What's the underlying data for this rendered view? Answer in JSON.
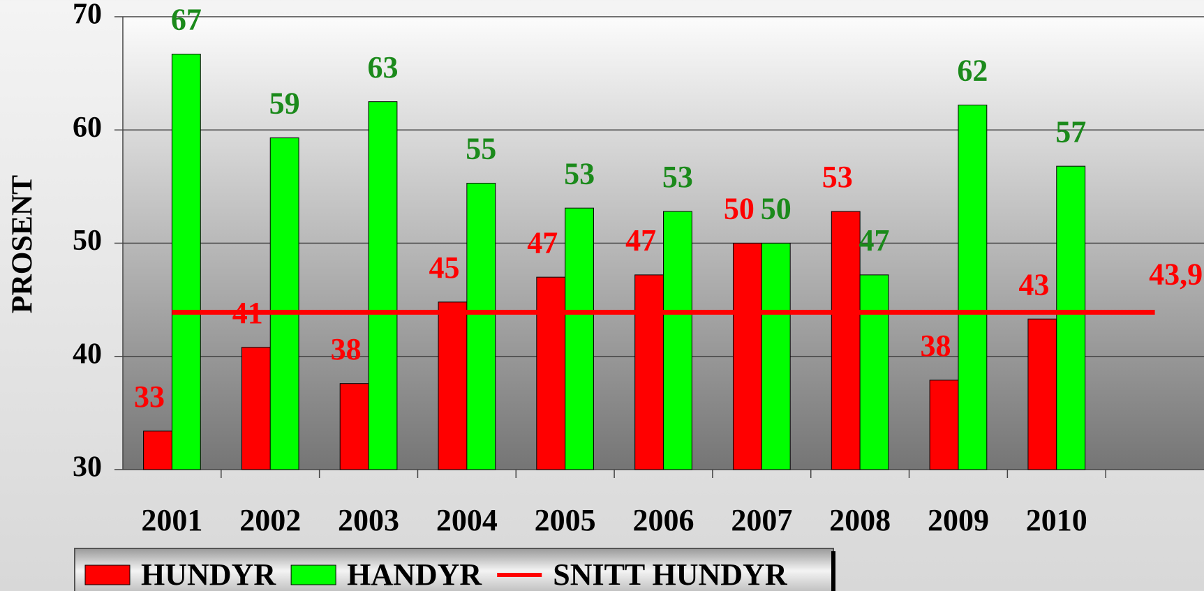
{
  "chart_data": {
    "type": "bar",
    "categories": [
      "2001",
      "2002",
      "2003",
      "2004",
      "2005",
      "2006",
      "2007",
      "2008",
      "2009",
      "2010",
      null
    ],
    "y_label": "PROSENT",
    "ylim": [
      30,
      70
    ],
    "yticks": [
      30,
      40,
      50,
      60,
      70
    ],
    "grid": true,
    "series": [
      {
        "name": "HUNDYR",
        "color": "#ff0000",
        "label_color": "#ff0000",
        "values": [
          33.4,
          40.8,
          37.6,
          44.8,
          47.0,
          47.2,
          50.0,
          52.8,
          37.9,
          43.3,
          null
        ],
        "value_labels": [
          "33",
          "41",
          "38",
          "45",
          "47",
          "47",
          "50",
          "53",
          "38",
          "43",
          null
        ]
      },
      {
        "name": "HANDYR",
        "color": "#00ff00",
        "label_color": "#1b8a1b",
        "values": [
          66.7,
          59.3,
          62.5,
          55.3,
          53.1,
          52.8,
          50.0,
          47.2,
          62.2,
          56.8,
          null
        ],
        "value_labels": [
          "67",
          "59",
          "63",
          "55",
          "53",
          "53",
          "50",
          "47",
          "62",
          "57",
          null
        ]
      },
      {
        "name": "SNITT HUNDYR",
        "type": "line",
        "color": "#ff0000",
        "label_color": "#ff0000",
        "values": [
          43.9,
          43.9,
          43.9,
          43.9,
          43.9,
          43.9,
          43.9,
          43.9,
          43.9,
          43.9,
          43.9
        ],
        "value_labels": [
          null,
          null,
          null,
          null,
          null,
          null,
          null,
          null,
          null,
          null,
          "43,9"
        ]
      }
    ]
  }
}
